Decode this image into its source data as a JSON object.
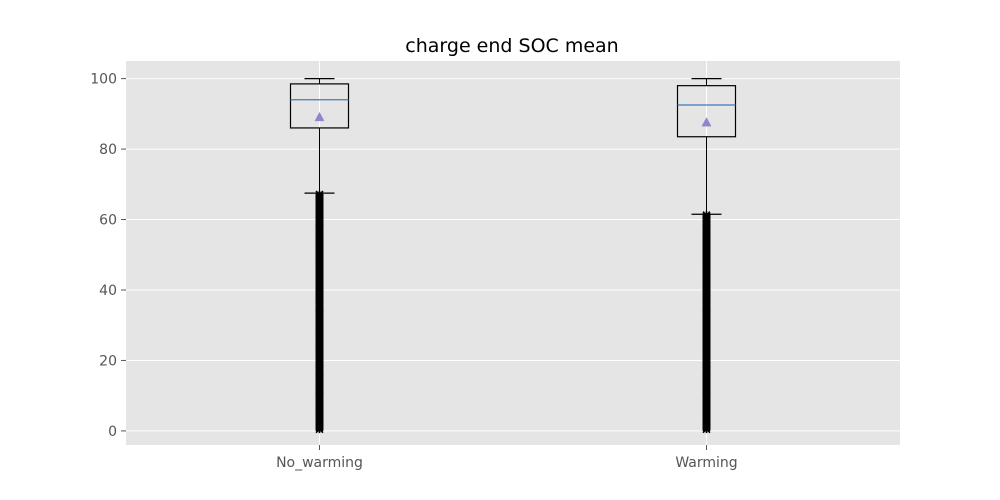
{
  "chart_data": {
    "type": "box",
    "title": "charge end SOC mean",
    "xlabel": "",
    "ylabel": "",
    "categories": [
      "No_warming",
      "Warming"
    ],
    "ylim": [
      -4,
      105
    ],
    "yticks": [
      0,
      20,
      40,
      60,
      80,
      100
    ],
    "grid": true,
    "show_means": true,
    "boxes": [
      {
        "category": "No_warming",
        "whisker_low": 67.5,
        "q1": 86,
        "median": 94,
        "q3": 98.5,
        "whisker_high": 100,
        "mean": 89,
        "outliers_range": [
          0.5,
          67.5
        ]
      },
      {
        "category": "Warming",
        "whisker_low": 61.5,
        "q1": 83.5,
        "median": 92.5,
        "q3": 98,
        "whisker_high": 100,
        "mean": 87.5,
        "outliers_range": [
          0.5,
          61.5
        ]
      }
    ],
    "colors": {
      "background": "#e5e5e5",
      "grid": "#ffffff",
      "box": "#000000",
      "median": "#3d7ab8",
      "mean_marker": "#8e86c9",
      "outlier": "#000000"
    }
  }
}
